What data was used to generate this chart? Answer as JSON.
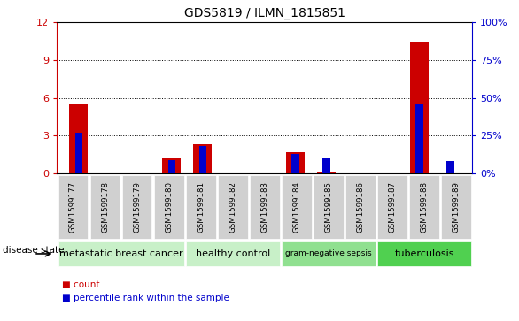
{
  "title": "GDS5819 / ILMN_1815851",
  "samples": [
    "GSM1599177",
    "GSM1599178",
    "GSM1599179",
    "GSM1599180",
    "GSM1599181",
    "GSM1599182",
    "GSM1599183",
    "GSM1599184",
    "GSM1599185",
    "GSM1599186",
    "GSM1599187",
    "GSM1599188",
    "GSM1599189"
  ],
  "count_values": [
    5.5,
    0,
    0,
    1.2,
    2.3,
    0,
    0,
    1.7,
    0.15,
    0,
    0,
    10.5,
    0
  ],
  "percentile_values": [
    27,
    0,
    0,
    9,
    18,
    0,
    0,
    13,
    10,
    0,
    0,
    46,
    8
  ],
  "ylim_left": [
    0,
    12
  ],
  "ylim_right": [
    0,
    100
  ],
  "yticks_left": [
    0,
    3,
    6,
    9,
    12
  ],
  "yticks_right": [
    0,
    25,
    50,
    75,
    100
  ],
  "groups": [
    {
      "label": "metastatic breast cancer",
      "start": 0,
      "end": 4,
      "color": "#c8f0c8"
    },
    {
      "label": "healthy control",
      "start": 4,
      "end": 7,
      "color": "#c8f0c8"
    },
    {
      "label": "gram-negative sepsis",
      "start": 7,
      "end": 10,
      "color": "#90e090"
    },
    {
      "label": "tuberculosis",
      "start": 10,
      "end": 13,
      "color": "#50d050"
    }
  ],
  "count_color": "#cc0000",
  "percentile_color": "#0000cc",
  "tick_area_color": "#d0d0d0",
  "left_axis_color": "#cc0000",
  "right_axis_color": "#0000cc",
  "disease_state_label": "disease state",
  "legend_count": "count",
  "legend_percentile": "percentile rank within the sample"
}
